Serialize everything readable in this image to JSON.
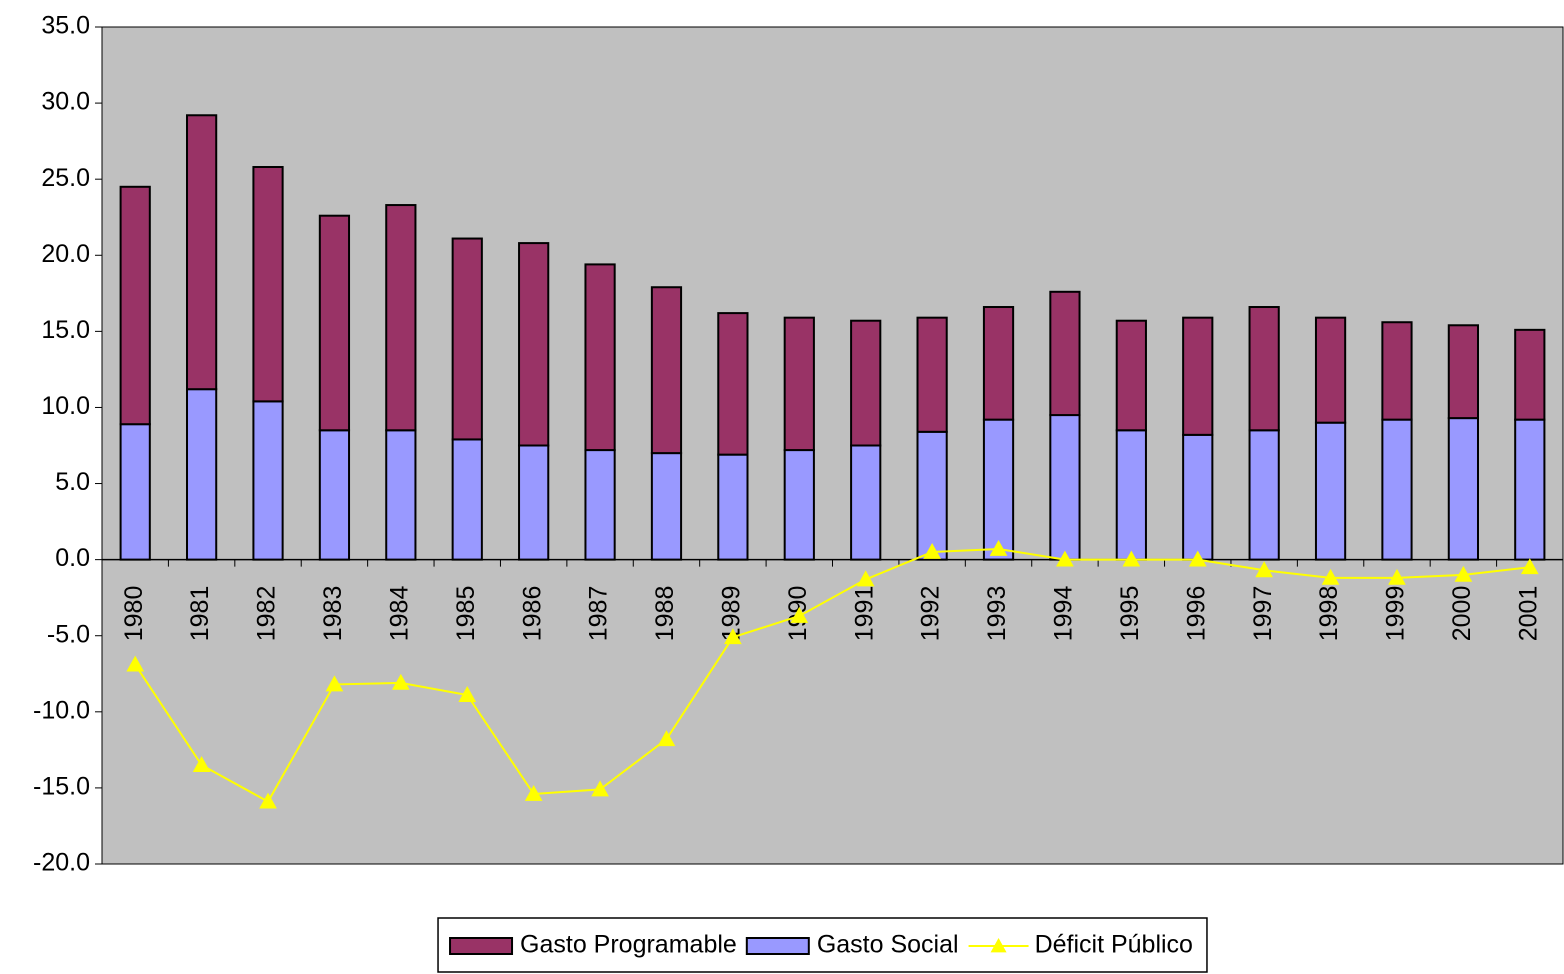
{
  "chart_data": {
    "type": "bar",
    "stacked": true,
    "categories": [
      "1980",
      "1981",
      "1982",
      "1983",
      "1984",
      "1985",
      "1986",
      "1987",
      "1988",
      "1989",
      "1990",
      "1991",
      "1992",
      "1993",
      "1994",
      "1995",
      "1996",
      "1997",
      "1998",
      "1999",
      "2000",
      "2001"
    ],
    "series": [
      {
        "name": "Gasto Social",
        "color": "#9999ff",
        "type": "bar",
        "values": [
          8.9,
          11.2,
          10.4,
          8.5,
          8.5,
          7.9,
          7.5,
          7.2,
          7.0,
          6.9,
          7.2,
          7.5,
          8.4,
          9.2,
          9.5,
          8.5,
          8.2,
          8.5,
          9.0,
          9.2,
          9.3,
          9.2
        ]
      },
      {
        "name": "Gasto Programable",
        "color": "#993366",
        "type": "bar",
        "values": [
          15.6,
          18.0,
          15.4,
          14.1,
          14.8,
          13.2,
          13.3,
          12.2,
          10.9,
          9.3,
          8.7,
          8.2,
          7.5,
          7.4,
          8.1,
          7.2,
          7.7,
          8.1,
          6.9,
          6.4,
          6.1,
          5.9
        ]
      },
      {
        "name": "Déficit Público",
        "color": "#ffff00",
        "type": "line",
        "values": [
          -6.9,
          -13.5,
          -15.9,
          -8.2,
          -8.1,
          -8.9,
          -15.4,
          -15.1,
          -11.8,
          -5.1,
          -3.7,
          -1.3,
          0.5,
          0.7,
          0.0,
          0.0,
          0.0,
          -0.7,
          -1.2,
          -1.2,
          -1.0,
          -0.5
        ]
      }
    ],
    "legend_order": [
      1,
      0,
      2
    ],
    "ylim": [
      -20,
      35
    ],
    "yticks": [
      {
        "value": -20,
        "label": "-20.0"
      },
      {
        "value": -15,
        "label": "-15.0"
      },
      {
        "value": -10,
        "label": "-10.0"
      },
      {
        "value": -5,
        "label": "-5.0"
      },
      {
        "value": 0,
        "label": "0.0"
      },
      {
        "value": 5,
        "label": "5.0"
      },
      {
        "value": 10,
        "label": "10.0"
      },
      {
        "value": 15,
        "label": "15.0"
      },
      {
        "value": 20,
        "label": "20.0"
      },
      {
        "value": 25,
        "label": "25.0"
      },
      {
        "value": 30,
        "label": "30.0"
      },
      {
        "value": 35,
        "label": "35.0"
      }
    ],
    "grid": false,
    "plot_background": "#c0c0c0",
    "legend_position": "bottom"
  }
}
